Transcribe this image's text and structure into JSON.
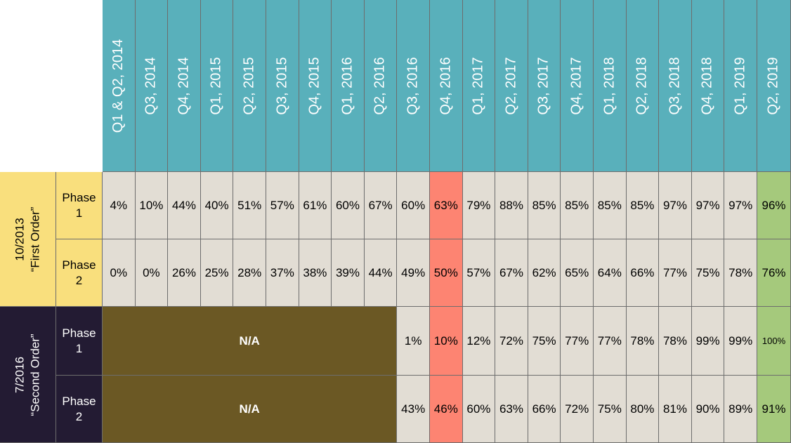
{
  "columns": [
    "Q1 & Q2, 2014",
    "Q3, 2014",
    "Q4, 2014",
    "Q1, 2015",
    "Q2, 2015",
    "Q3, 2015",
    "Q4, 2015",
    "Q1, 2016",
    "Q2, 2016",
    "Q3, 2016",
    "Q4, 2016",
    "Q1, 2017",
    "Q2, 2017",
    "Q3, 2017",
    "Q4, 2017",
    "Q1, 2018",
    "Q2, 2018",
    "Q3, 2018",
    "Q4, 2018",
    "Q1, 2019",
    "Q2, 2019"
  ],
  "groups": [
    {
      "label_line1": "10/2013",
      "label_line2": "“First Order”",
      "color": "#f9df7d",
      "text_color": "#000000",
      "rows": [
        {
          "phase_line1": "Phase",
          "phase_line2": "1",
          "values": [
            "4%",
            "10%",
            "44%",
            "40%",
            "51%",
            "57%",
            "61%",
            "60%",
            "67%",
            "60%",
            "63%",
            "79%",
            "88%",
            "85%",
            "85%",
            "85%",
            "85%",
            "97%",
            "97%",
            "97%",
            "96%"
          ]
        },
        {
          "phase_line1": "Phase",
          "phase_line2": "2",
          "values": [
            "0%",
            "0%",
            "26%",
            "25%",
            "28%",
            "37%",
            "38%",
            "39%",
            "44%",
            "49%",
            "50%",
            "57%",
            "67%",
            "62%",
            "65%",
            "64%",
            "66%",
            "77%",
            "75%",
            "78%",
            "76%"
          ]
        }
      ]
    },
    {
      "label_line1": "7/2016",
      "label_line2": "“Second Order”",
      "color": "#231b33",
      "text_color": "#ffffff",
      "rows": [
        {
          "phase_line1": "Phase",
          "phase_line2": "1",
          "na_span": 9,
          "na_label": "N/A",
          "values": [
            "1%",
            "10%",
            "12%",
            "72%",
            "75%",
            "77%",
            "77%",
            "78%",
            "78%",
            "99%",
            "99%",
            "100%"
          ]
        },
        {
          "phase_line1": "Phase",
          "phase_line2": "2",
          "na_span": 9,
          "na_label": "N/A",
          "values": [
            "43%",
            "46%",
            "60%",
            "63%",
            "66%",
            "72%",
            "75%",
            "80%",
            "81%",
            "90%",
            "89%",
            "91%"
          ]
        }
      ]
    }
  ],
  "highlight_columns": {
    "red": "Q4, 2016",
    "green": "Q2, 2019"
  },
  "colors": {
    "header": "#59b0bb",
    "cell": "#e2ddd4",
    "red": "#fd8472",
    "green": "#a5c97c",
    "na": "#6b5824"
  }
}
